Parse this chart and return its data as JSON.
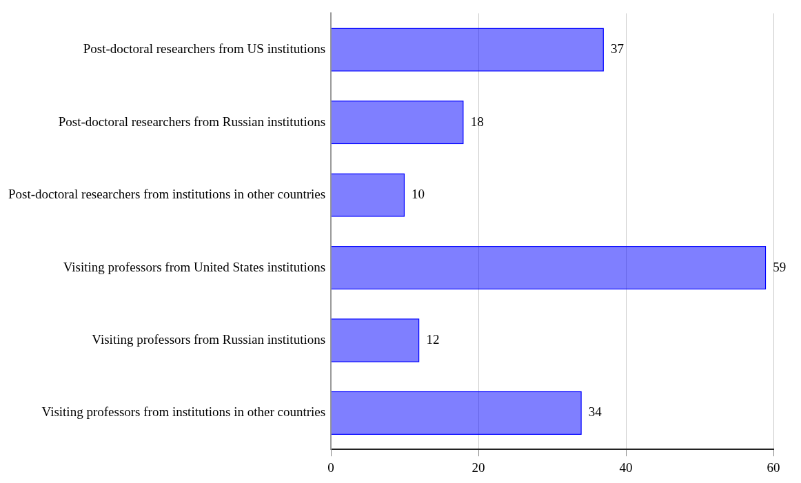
{
  "chart_data": {
    "type": "bar",
    "orientation": "horizontal",
    "categories": [
      "Post-doctoral researchers from US institutions",
      "Post-doctoral researchers from Russian institutions",
      "Post-doctoral researchers from institutions in other countries",
      "Visiting professors from United States institutions",
      "Visiting professors from Russian institutions",
      "Visiting professors from institutions in other countries"
    ],
    "values": [
      37,
      18,
      10,
      59,
      12,
      34
    ],
    "color": "#0000ff",
    "xlim": [
      0,
      60
    ],
    "xticks": [
      0,
      20,
      40,
      60
    ],
    "grid": "x",
    "data_labels": true,
    "legend": false
  }
}
